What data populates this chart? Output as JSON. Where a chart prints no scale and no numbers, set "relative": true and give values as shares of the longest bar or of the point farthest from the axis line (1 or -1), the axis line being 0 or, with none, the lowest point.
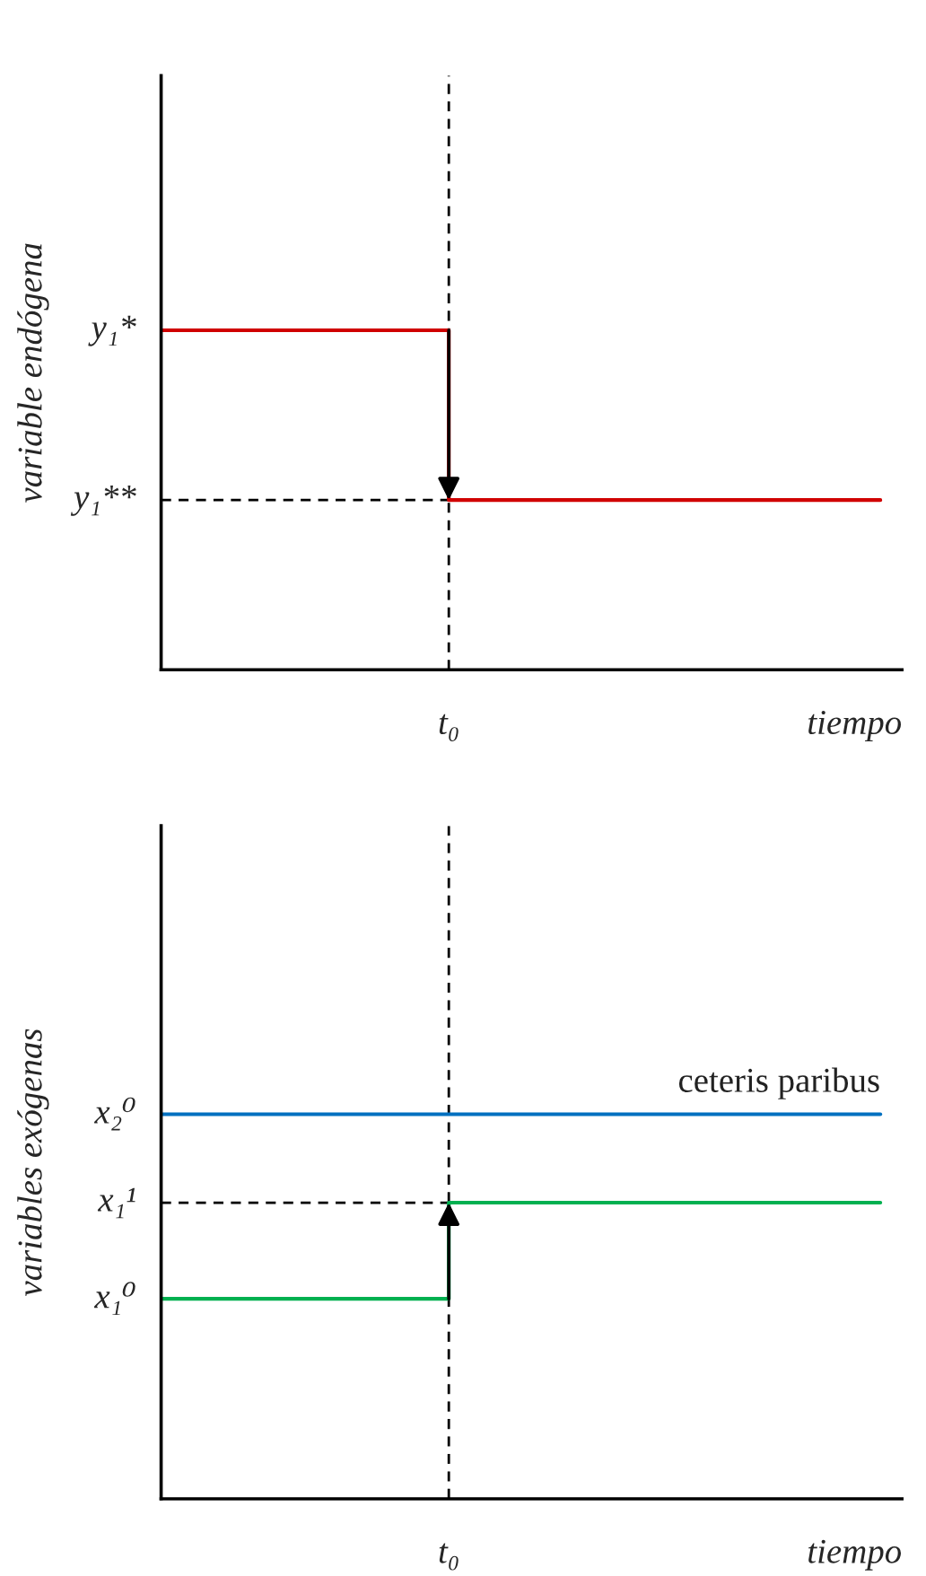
{
  "chart_data": [
    {
      "type": "step",
      "relative": true,
      "ylabel": "variable endógena",
      "xlabel": "tiempo",
      "categories": [
        null,
        null,
        null,
        null,
        null,
        null
      ],
      "series": [
        {
          "color": "#d00000",
          "values": [
            1,
            1,
            0.5,
            0.5,
            0.5,
            0.5
          ]
        }
      ],
      "ref_lines": [
        {
          "axis": "y",
          "value": 0.5,
          "line_style": "dashed",
          "color": "#000000"
        }
      ],
      "annotations": [
        "y₁*",
        "y₁**",
        "t₀"
      ],
      "grid": false,
      "legend": false
    },
    {
      "type": "step",
      "relative": true,
      "ylabel": "variables exógenas",
      "xlabel": "tiempo",
      "categories": [
        null,
        null,
        null,
        null,
        null,
        null
      ],
      "series": [
        {
          "type": "line",
          "name": "ceteris paribus",
          "color": "#0070c0",
          "values": [
            1,
            1,
            1,
            1,
            1,
            1
          ]
        },
        {
          "color": "#00b050",
          "values": [
            0.52,
            0.52,
            0.77,
            0.77,
            0.77,
            0.77
          ]
        }
      ],
      "ref_lines": [
        {
          "axis": "y",
          "value": 0.77,
          "line_style": "dashed",
          "color": "#000000"
        }
      ],
      "annotations": [
        "x₂⁰",
        "x₁¹",
        "x₁⁰",
        "t₀"
      ],
      "grid": false,
      "legend": false
    }
  ]
}
